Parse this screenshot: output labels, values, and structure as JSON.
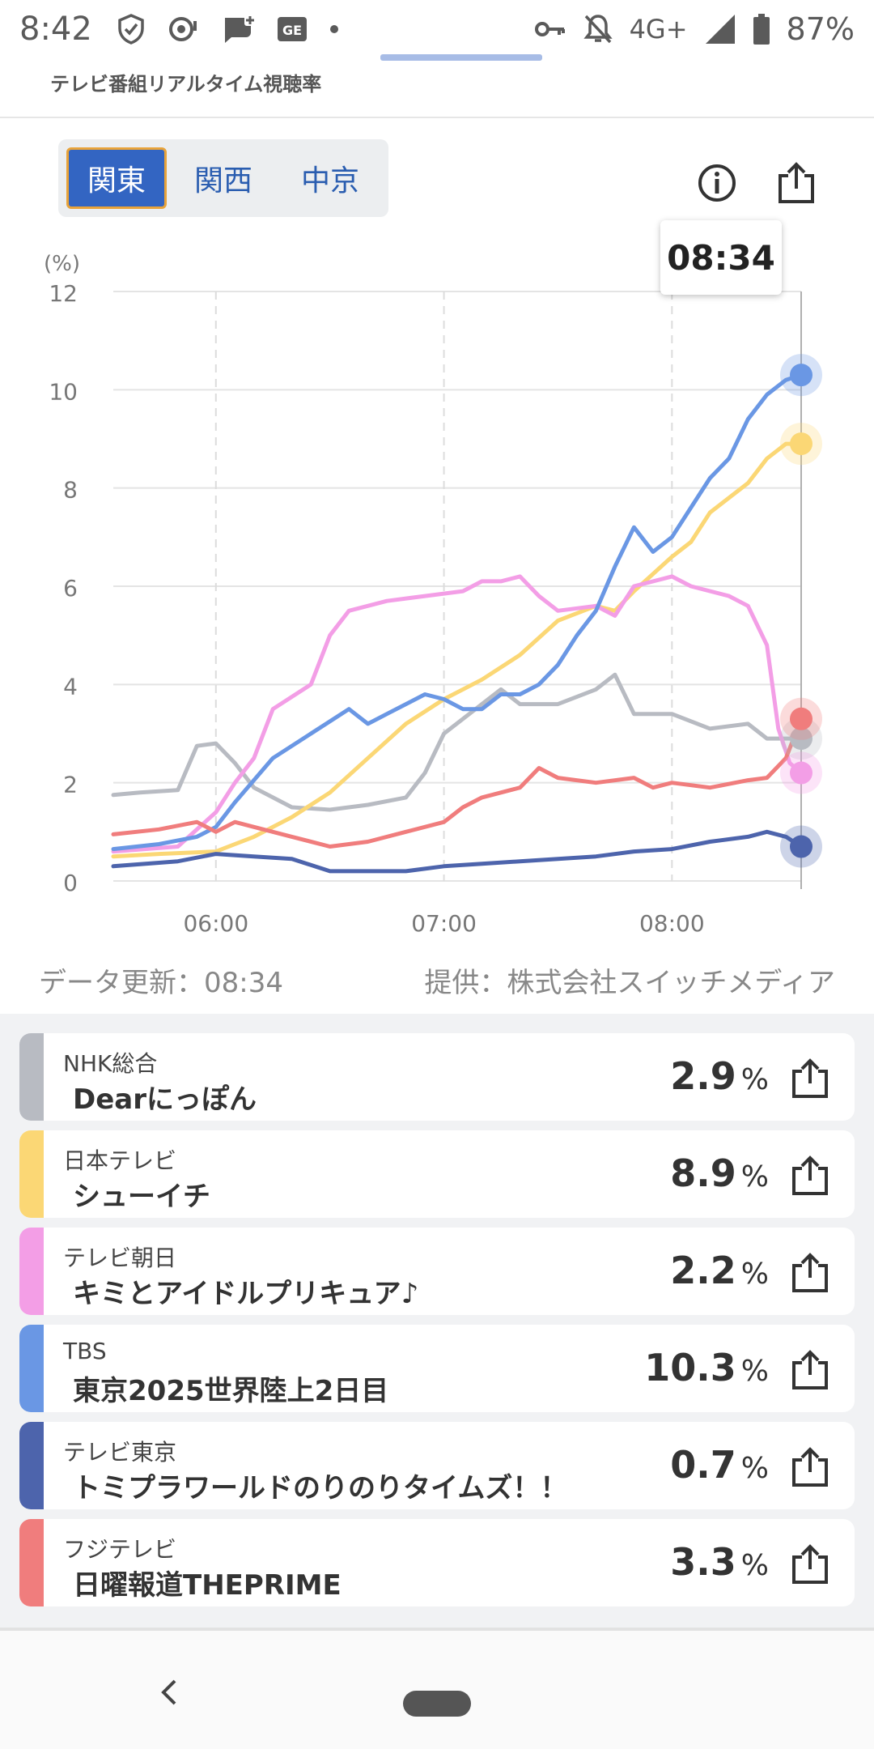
{
  "status_bar": {
    "time": "8:42",
    "network": "4G+",
    "battery": "87%",
    "left_icons": [
      "shield-check-icon",
      "data-saver-icon",
      "message-plus-icon",
      "ge-icon",
      "dot-icon"
    ],
    "right_icons": [
      "key-icon",
      "bell-off-icon",
      "signal-icon",
      "battery-icon"
    ]
  },
  "header": {
    "subtitle": "テレビ番組リアルタイム視聴率"
  },
  "region_tabs": [
    {
      "label": "関東",
      "active": true
    },
    {
      "label": "関西",
      "active": false
    },
    {
      "label": "中京",
      "active": false
    }
  ],
  "chart_actions": [
    "info-icon",
    "share-icon"
  ],
  "tooltip_time": "08:34",
  "chart_data": {
    "type": "line",
    "y_unit": "(%)",
    "y_ticks": [
      "0",
      "2",
      "4",
      "6",
      "8",
      "10",
      "12"
    ],
    "ylim": [
      0,
      12
    ],
    "x_ticks": [
      "06:00",
      "07:00",
      "08:00"
    ],
    "x_range": [
      "05:33",
      "08:34"
    ],
    "grid": true,
    "series": [
      {
        "name": "NHK総合",
        "color": "#b8bbc2",
        "points": [
          [
            "05:33",
            1.75
          ],
          [
            "05:40",
            1.8
          ],
          [
            "05:50",
            1.85
          ],
          [
            "05:55",
            2.75
          ],
          [
            "06:00",
            2.8
          ],
          [
            "06:05",
            2.4
          ],
          [
            "06:10",
            1.9
          ],
          [
            "06:20",
            1.5
          ],
          [
            "06:30",
            1.45
          ],
          [
            "06:40",
            1.55
          ],
          [
            "06:50",
            1.7
          ],
          [
            "06:55",
            2.2
          ],
          [
            "07:00",
            3.0
          ],
          [
            "07:10",
            3.6
          ],
          [
            "07:15",
            3.9
          ],
          [
            "07:20",
            3.6
          ],
          [
            "07:30",
            3.6
          ],
          [
            "07:40",
            3.9
          ],
          [
            "07:45",
            4.2
          ],
          [
            "07:50",
            3.4
          ],
          [
            "08:00",
            3.4
          ],
          [
            "08:10",
            3.1
          ],
          [
            "08:20",
            3.2
          ],
          [
            "08:25",
            2.9
          ],
          [
            "08:30",
            2.9
          ],
          [
            "08:34",
            2.9
          ]
        ]
      },
      {
        "name": "日本テレビ",
        "color": "#fbd775",
        "points": [
          [
            "05:33",
            0.5
          ],
          [
            "05:45",
            0.55
          ],
          [
            "06:00",
            0.6
          ],
          [
            "06:10",
            0.9
          ],
          [
            "06:20",
            1.3
          ],
          [
            "06:30",
            1.8
          ],
          [
            "06:40",
            2.5
          ],
          [
            "06:50",
            3.2
          ],
          [
            "07:00",
            3.7
          ],
          [
            "07:10",
            4.1
          ],
          [
            "07:20",
            4.6
          ],
          [
            "07:30",
            5.3
          ],
          [
            "07:40",
            5.6
          ],
          [
            "07:45",
            5.5
          ],
          [
            "07:50",
            5.9
          ],
          [
            "08:00",
            6.6
          ],
          [
            "08:05",
            6.9
          ],
          [
            "08:10",
            7.5
          ],
          [
            "08:20",
            8.1
          ],
          [
            "08:25",
            8.6
          ],
          [
            "08:30",
            8.9
          ],
          [
            "08:34",
            8.9
          ]
        ]
      },
      {
        "name": "テレビ朝日",
        "color": "#f39ee6",
        "points": [
          [
            "05:33",
            0.6
          ],
          [
            "05:50",
            0.7
          ],
          [
            "06:00",
            1.4
          ],
          [
            "06:05",
            2.0
          ],
          [
            "06:10",
            2.5
          ],
          [
            "06:15",
            3.5
          ],
          [
            "06:25",
            4.0
          ],
          [
            "06:30",
            5.0
          ],
          [
            "06:35",
            5.5
          ],
          [
            "06:45",
            5.7
          ],
          [
            "06:55",
            5.8
          ],
          [
            "07:05",
            5.9
          ],
          [
            "07:10",
            6.1
          ],
          [
            "07:15",
            6.1
          ],
          [
            "07:20",
            6.2
          ],
          [
            "07:25",
            5.8
          ],
          [
            "07:30",
            5.5
          ],
          [
            "07:40",
            5.6
          ],
          [
            "07:45",
            5.4
          ],
          [
            "07:50",
            6.0
          ],
          [
            "08:00",
            6.2
          ],
          [
            "08:05",
            6.0
          ],
          [
            "08:15",
            5.8
          ],
          [
            "08:20",
            5.6
          ],
          [
            "08:25",
            4.8
          ],
          [
            "08:28",
            3.1
          ],
          [
            "08:31",
            2.4
          ],
          [
            "08:34",
            2.2
          ]
        ]
      },
      {
        "name": "TBS",
        "color": "#6a97e4",
        "points": [
          [
            "05:33",
            0.65
          ],
          [
            "05:45",
            0.75
          ],
          [
            "05:55",
            0.9
          ],
          [
            "06:00",
            1.1
          ],
          [
            "06:05",
            1.6
          ],
          [
            "06:15",
            2.5
          ],
          [
            "06:25",
            3.0
          ],
          [
            "06:35",
            3.5
          ],
          [
            "06:40",
            3.2
          ],
          [
            "06:45",
            3.4
          ],
          [
            "06:55",
            3.8
          ],
          [
            "07:00",
            3.7
          ],
          [
            "07:05",
            3.5
          ],
          [
            "07:10",
            3.5
          ],
          [
            "07:15",
            3.8
          ],
          [
            "07:20",
            3.8
          ],
          [
            "07:25",
            4.0
          ],
          [
            "07:30",
            4.4
          ],
          [
            "07:35",
            5.0
          ],
          [
            "07:40",
            5.5
          ],
          [
            "07:45",
            6.4
          ],
          [
            "07:50",
            7.2
          ],
          [
            "07:55",
            6.7
          ],
          [
            "08:00",
            7.0
          ],
          [
            "08:05",
            7.6
          ],
          [
            "08:10",
            8.2
          ],
          [
            "08:15",
            8.6
          ],
          [
            "08:20",
            9.4
          ],
          [
            "08:25",
            9.9
          ],
          [
            "08:30",
            10.2
          ],
          [
            "08:34",
            10.3
          ]
        ]
      },
      {
        "name": "テレビ東京",
        "color": "#4d64ac",
        "points": [
          [
            "05:33",
            0.3
          ],
          [
            "05:50",
            0.4
          ],
          [
            "06:00",
            0.55
          ],
          [
            "06:10",
            0.5
          ],
          [
            "06:20",
            0.45
          ],
          [
            "06:30",
            0.2
          ],
          [
            "06:40",
            0.2
          ],
          [
            "06:50",
            0.2
          ],
          [
            "07:00",
            0.3
          ],
          [
            "07:10",
            0.35
          ],
          [
            "07:20",
            0.4
          ],
          [
            "07:30",
            0.45
          ],
          [
            "07:40",
            0.5
          ],
          [
            "07:50",
            0.6
          ],
          [
            "08:00",
            0.65
          ],
          [
            "08:10",
            0.8
          ],
          [
            "08:20",
            0.9
          ],
          [
            "08:25",
            1.0
          ],
          [
            "08:30",
            0.9
          ],
          [
            "08:34",
            0.7
          ]
        ]
      },
      {
        "name": "フジテレビ",
        "color": "#f07d7d",
        "points": [
          [
            "05:33",
            0.95
          ],
          [
            "05:45",
            1.05
          ],
          [
            "05:55",
            1.2
          ],
          [
            "06:00",
            1.0
          ],
          [
            "06:05",
            1.2
          ],
          [
            "06:10",
            1.1
          ],
          [
            "06:20",
            0.9
          ],
          [
            "06:30",
            0.7
          ],
          [
            "06:40",
            0.8
          ],
          [
            "06:50",
            1.0
          ],
          [
            "07:00",
            1.2
          ],
          [
            "07:05",
            1.5
          ],
          [
            "07:10",
            1.7
          ],
          [
            "07:20",
            1.9
          ],
          [
            "07:25",
            2.3
          ],
          [
            "07:30",
            2.1
          ],
          [
            "07:40",
            2.0
          ],
          [
            "07:50",
            2.1
          ],
          [
            "07:55",
            1.9
          ],
          [
            "08:00",
            2.0
          ],
          [
            "08:10",
            1.9
          ],
          [
            "08:20",
            2.05
          ],
          [
            "08:25",
            2.1
          ],
          [
            "08:30",
            2.5
          ],
          [
            "08:34",
            3.3
          ]
        ]
      }
    ]
  },
  "data_updated": "データ更新：08:34",
  "provider": "提供：株式会社スイッチメディア",
  "channels": [
    {
      "channel": "NHK総合",
      "program": "Dearにっぽん",
      "value": "2.9",
      "unit": "%",
      "color": "#b8bbc2"
    },
    {
      "channel": "日本テレビ",
      "program": "シューイチ",
      "value": "8.9",
      "unit": "%",
      "color": "#fbd775"
    },
    {
      "channel": "テレビ朝日",
      "program": "キミとアイドルプリキュア♪",
      "value": "2.2",
      "unit": "%",
      "color": "#f39ee6"
    },
    {
      "channel": "TBS",
      "program": "東京2025世界陸上2日目",
      "value": "10.3",
      "unit": "%",
      "color": "#6a97e4"
    },
    {
      "channel": "テレビ東京",
      "program": "トミプラワールドのりのりタイムズ！！",
      "value": "0.7",
      "unit": "%",
      "color": "#4d64ac"
    },
    {
      "channel": "フジテレビ",
      "program": "日曜報道THEPRIME",
      "value": "3.3",
      "unit": "%",
      "color": "#f07d7d"
    }
  ]
}
